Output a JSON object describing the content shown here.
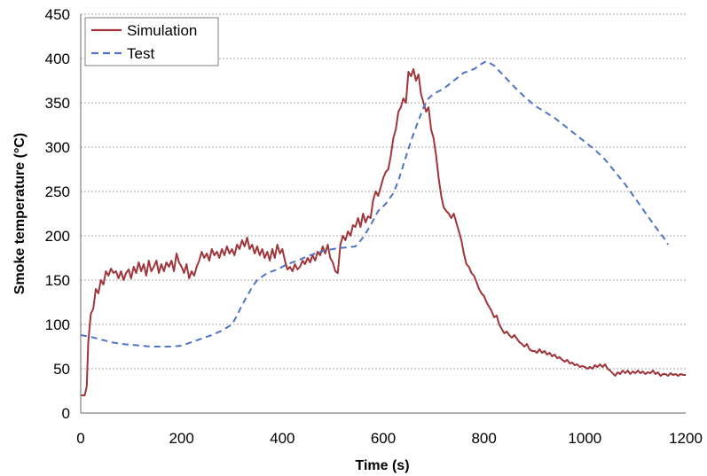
{
  "chart_data": {
    "type": "line",
    "title": "",
    "xlabel": "Time (s)",
    "ylabel": "Smoke temperature (°C)",
    "xlim": [
      0,
      1200
    ],
    "ylim": [
      0,
      450
    ],
    "x_ticks": [
      0,
      200,
      400,
      600,
      800,
      1000,
      1200
    ],
    "y_ticks": [
      0,
      50,
      100,
      150,
      200,
      250,
      300,
      350,
      400,
      450
    ],
    "grid": "horizontal dashed",
    "legend_position": "top-left",
    "series": [
      {
        "name": "Simulation",
        "color": "#a0353a",
        "style": "solid",
        "points": [
          [
            0,
            20
          ],
          [
            8,
            20
          ],
          [
            12,
            30
          ],
          [
            15,
            80
          ],
          [
            20,
            112
          ],
          [
            25,
            118
          ],
          [
            30,
            140
          ],
          [
            35,
            135
          ],
          [
            40,
            150
          ],
          [
            45,
            145
          ],
          [
            50,
            160
          ],
          [
            55,
            155
          ],
          [
            60,
            163
          ],
          [
            65,
            158
          ],
          [
            70,
            160
          ],
          [
            75,
            152
          ],
          [
            80,
            160
          ],
          [
            85,
            150
          ],
          [
            90,
            158
          ],
          [
            95,
            162
          ],
          [
            100,
            152
          ],
          [
            105,
            165
          ],
          [
            110,
            158
          ],
          [
            115,
            170
          ],
          [
            120,
            160
          ],
          [
            125,
            168
          ],
          [
            130,
            155
          ],
          [
            135,
            172
          ],
          [
            140,
            160
          ],
          [
            145,
            165
          ],
          [
            150,
            172
          ],
          [
            155,
            158
          ],
          [
            160,
            168
          ],
          [
            165,
            160
          ],
          [
            170,
            170
          ],
          [
            175,
            165
          ],
          [
            180,
            172
          ],
          [
            185,
            160
          ],
          [
            190,
            180
          ],
          [
            195,
            170
          ],
          [
            200,
            165
          ],
          [
            205,
            158
          ],
          [
            210,
            168
          ],
          [
            215,
            152
          ],
          [
            220,
            160
          ],
          [
            225,
            155
          ],
          [
            230,
            165
          ],
          [
            235,
            172
          ],
          [
            240,
            182
          ],
          [
            245,
            175
          ],
          [
            250,
            180
          ],
          [
            255,
            172
          ],
          [
            260,
            185
          ],
          [
            265,
            178
          ],
          [
            270,
            182
          ],
          [
            275,
            175
          ],
          [
            280,
            185
          ],
          [
            285,
            178
          ],
          [
            290,
            188
          ],
          [
            295,
            180
          ],
          [
            300,
            185
          ],
          [
            305,
            178
          ],
          [
            310,
            190
          ],
          [
            315,
            185
          ],
          [
            320,
            195
          ],
          [
            325,
            188
          ],
          [
            330,
            198
          ],
          [
            335,
            185
          ],
          [
            340,
            190
          ],
          [
            345,
            180
          ],
          [
            350,
            188
          ],
          [
            355,
            178
          ],
          [
            360,
            185
          ],
          [
            365,
            175
          ],
          [
            370,
            182
          ],
          [
            375,
            172
          ],
          [
            380,
            185
          ],
          [
            385,
            175
          ],
          [
            390,
            190
          ],
          [
            395,
            180
          ],
          [
            400,
            185
          ],
          [
            405,
            172
          ],
          [
            410,
            162
          ],
          [
            415,
            165
          ],
          [
            420,
            160
          ],
          [
            425,
            168
          ],
          [
            430,
            162
          ],
          [
            435,
            165
          ],
          [
            440,
            172
          ],
          [
            445,
            168
          ],
          [
            450,
            175
          ],
          [
            455,
            170
          ],
          [
            460,
            178
          ],
          [
            465,
            172
          ],
          [
            470,
            182
          ],
          [
            475,
            178
          ],
          [
            480,
            188
          ],
          [
            485,
            180
          ],
          [
            490,
            190
          ],
          [
            495,
            175
          ],
          [
            500,
            170
          ],
          [
            505,
            160
          ],
          [
            510,
            158
          ],
          [
            515,
            190
          ],
          [
            520,
            200
          ],
          [
            525,
            195
          ],
          [
            530,
            205
          ],
          [
            535,
            200
          ],
          [
            540,
            212
          ],
          [
            545,
            210
          ],
          [
            550,
            220
          ],
          [
            555,
            210
          ],
          [
            560,
            225
          ],
          [
            565,
            215
          ],
          [
            570,
            222
          ],
          [
            575,
            220
          ],
          [
            580,
            240
          ],
          [
            585,
            250
          ],
          [
            590,
            245
          ],
          [
            595,
            255
          ],
          [
            600,
            265
          ],
          [
            605,
            272
          ],
          [
            610,
            275
          ],
          [
            615,
            290
          ],
          [
            620,
            310
          ],
          [
            625,
            320
          ],
          [
            630,
            340
          ],
          [
            635,
            345
          ],
          [
            640,
            355
          ],
          [
            645,
            350
          ],
          [
            650,
            385
          ],
          [
            655,
            380
          ],
          [
            660,
            388
          ],
          [
            665,
            375
          ],
          [
            670,
            382
          ],
          [
            675,
            360
          ],
          [
            680,
            350
          ],
          [
            685,
            340
          ],
          [
            690,
            345
          ],
          [
            695,
            320
          ],
          [
            700,
            310
          ],
          [
            705,
            290
          ],
          [
            710,
            265
          ],
          [
            715,
            245
          ],
          [
            720,
            232
          ],
          [
            725,
            228
          ],
          [
            730,
            225
          ],
          [
            735,
            220
          ],
          [
            740,
            225
          ],
          [
            745,
            215
          ],
          [
            750,
            205
          ],
          [
            755,
            195
          ],
          [
            760,
            180
          ],
          [
            765,
            168
          ],
          [
            770,
            165
          ],
          [
            775,
            158
          ],
          [
            780,
            155
          ],
          [
            785,
            148
          ],
          [
            790,
            140
          ],
          [
            795,
            135
          ],
          [
            800,
            132
          ],
          [
            805,
            125
          ],
          [
            810,
            120
          ],
          [
            815,
            115
          ],
          [
            820,
            108
          ],
          [
            825,
            110
          ],
          [
            830,
            100
          ],
          [
            835,
            95
          ],
          [
            840,
            90
          ],
          [
            845,
            92
          ],
          [
            850,
            88
          ],
          [
            855,
            85
          ],
          [
            860,
            88
          ],
          [
            865,
            84
          ],
          [
            870,
            80
          ],
          [
            875,
            78
          ],
          [
            880,
            75
          ],
          [
            885,
            78
          ],
          [
            890,
            72
          ],
          [
            895,
            70
          ],
          [
            900,
            70
          ],
          [
            905,
            68
          ],
          [
            910,
            72
          ],
          [
            915,
            68
          ],
          [
            920,
            70
          ],
          [
            925,
            66
          ],
          [
            930,
            68
          ],
          [
            935,
            64
          ],
          [
            940,
            66
          ],
          [
            945,
            62
          ],
          [
            950,
            63
          ],
          [
            955,
            60
          ],
          [
            960,
            58
          ],
          [
            965,
            60
          ],
          [
            970,
            56
          ],
          [
            975,
            57
          ],
          [
            980,
            54
          ],
          [
            985,
            55
          ],
          [
            990,
            52
          ],
          [
            995,
            53
          ],
          [
            1000,
            52
          ],
          [
            1005,
            50
          ],
          [
            1010,
            52
          ],
          [
            1015,
            50
          ],
          [
            1020,
            54
          ],
          [
            1025,
            52
          ],
          [
            1030,
            55
          ],
          [
            1035,
            52
          ],
          [
            1040,
            55
          ],
          [
            1045,
            50
          ],
          [
            1050,
            48
          ],
          [
            1055,
            45
          ],
          [
            1060,
            42
          ],
          [
            1065,
            46
          ],
          [
            1070,
            44
          ],
          [
            1075,
            48
          ],
          [
            1080,
            45
          ],
          [
            1085,
            48
          ],
          [
            1090,
            44
          ],
          [
            1095,
            47
          ],
          [
            1100,
            45
          ],
          [
            1105,
            48
          ],
          [
            1110,
            45
          ],
          [
            1115,
            47
          ],
          [
            1120,
            44
          ],
          [
            1125,
            46
          ],
          [
            1130,
            45
          ],
          [
            1135,
            48
          ],
          [
            1140,
            44
          ],
          [
            1145,
            46
          ],
          [
            1150,
            42
          ],
          [
            1155,
            44
          ],
          [
            1160,
            44
          ],
          [
            1165,
            42
          ],
          [
            1170,
            45
          ],
          [
            1175,
            43
          ],
          [
            1180,
            44
          ],
          [
            1185,
            42
          ],
          [
            1190,
            44
          ],
          [
            1195,
            43
          ],
          [
            1200,
            43
          ]
        ]
      },
      {
        "name": "Test",
        "color": "#4f74c4",
        "style": "dashed",
        "points": [
          [
            0,
            88
          ],
          [
            20,
            86
          ],
          [
            40,
            83
          ],
          [
            60,
            80
          ],
          [
            80,
            78
          ],
          [
            100,
            77
          ],
          [
            120,
            76
          ],
          [
            140,
            75
          ],
          [
            160,
            75
          ],
          [
            180,
            75
          ],
          [
            200,
            76
          ],
          [
            220,
            80
          ],
          [
            240,
            84
          ],
          [
            260,
            88
          ],
          [
            280,
            93
          ],
          [
            300,
            100
          ],
          [
            310,
            110
          ],
          [
            320,
            122
          ],
          [
            330,
            132
          ],
          [
            340,
            142
          ],
          [
            350,
            150
          ],
          [
            370,
            158
          ],
          [
            390,
            162
          ],
          [
            410,
            168
          ],
          [
            430,
            172
          ],
          [
            450,
            177
          ],
          [
            470,
            181
          ],
          [
            490,
            184
          ],
          [
            510,
            186
          ],
          [
            530,
            187
          ],
          [
            545,
            188
          ],
          [
            560,
            198
          ],
          [
            575,
            212
          ],
          [
            590,
            228
          ],
          [
            605,
            236
          ],
          [
            620,
            248
          ],
          [
            630,
            262
          ],
          [
            640,
            280
          ],
          [
            650,
            298
          ],
          [
            660,
            315
          ],
          [
            670,
            330
          ],
          [
            680,
            345
          ],
          [
            690,
            355
          ],
          [
            700,
            360
          ],
          [
            720,
            366
          ],
          [
            740,
            375
          ],
          [
            760,
            384
          ],
          [
            780,
            388
          ],
          [
            795,
            394
          ],
          [
            805,
            397
          ],
          [
            820,
            392
          ],
          [
            840,
            380
          ],
          [
            860,
            368
          ],
          [
            880,
            357
          ],
          [
            900,
            347
          ],
          [
            920,
            340
          ],
          [
            940,
            333
          ],
          [
            960,
            324
          ],
          [
            980,
            315
          ],
          [
            1000,
            306
          ],
          [
            1020,
            297
          ],
          [
            1040,
            286
          ],
          [
            1060,
            272
          ],
          [
            1080,
            258
          ],
          [
            1100,
            242
          ],
          [
            1120,
            226
          ],
          [
            1140,
            210
          ],
          [
            1160,
            195
          ],
          [
            1165,
            190
          ]
        ]
      }
    ]
  }
}
